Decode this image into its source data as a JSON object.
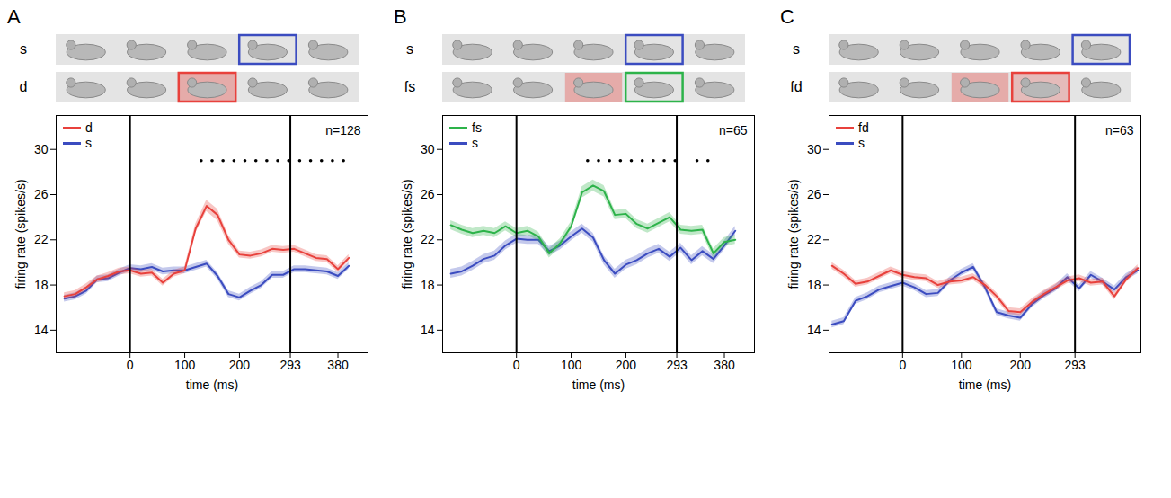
{
  "chart_data": [
    {
      "panel": "A",
      "type": "line",
      "rows": [
        "s",
        "d"
      ],
      "x": [
        -120,
        -100,
        -80,
        -60,
        -40,
        -20,
        0,
        20,
        40,
        60,
        80,
        100,
        120,
        140,
        160,
        180,
        200,
        220,
        240,
        260,
        280,
        300,
        320,
        340,
        360,
        380,
        400
      ],
      "series": [
        {
          "name": "d",
          "color": "#e8413c",
          "values": [
            17.0,
            17.2,
            17.8,
            18.5,
            18.8,
            19.2,
            19.3,
            19.0,
            19.1,
            18.2,
            19.0,
            19.3,
            23.0,
            25.0,
            24.2,
            22.0,
            20.7,
            20.6,
            20.8,
            21.2,
            21.1,
            21.2,
            20.8,
            20.4,
            20.3,
            19.4,
            20.4
          ],
          "error": [
            0.3,
            0.3,
            0.3,
            0.3,
            0.3,
            0.3,
            0.3,
            0.3,
            0.3,
            0.3,
            0.3,
            0.3,
            0.4,
            0.5,
            0.5,
            0.4,
            0.3,
            0.3,
            0.3,
            0.3,
            0.3,
            0.3,
            0.3,
            0.3,
            0.3,
            0.3,
            0.3
          ]
        },
        {
          "name": "s",
          "color": "#3b4cc0",
          "values": [
            16.8,
            17.0,
            17.5,
            18.5,
            18.6,
            19.1,
            19.5,
            19.4,
            19.6,
            19.2,
            19.3,
            19.3,
            19.6,
            19.9,
            18.8,
            17.2,
            16.9,
            17.5,
            18.0,
            18.9,
            18.9,
            19.4,
            19.4,
            19.3,
            19.2,
            18.8,
            19.7
          ],
          "error": [
            0.3,
            0.3,
            0.3,
            0.3,
            0.3,
            0.3,
            0.3,
            0.3,
            0.3,
            0.3,
            0.3,
            0.3,
            0.3,
            0.3,
            0.3,
            0.3,
            0.3,
            0.3,
            0.3,
            0.3,
            0.3,
            0.3,
            0.3,
            0.3,
            0.3,
            0.3,
            0.3
          ]
        }
      ],
      "xlim": [
        -135,
        435
      ],
      "xticks": [
        0,
        100,
        200,
        293,
        380
      ],
      "ylim": [
        12,
        33
      ],
      "yticks": [
        14,
        18,
        22,
        26,
        30
      ],
      "xlabel": "time (ms)",
      "ylabel": "firing rate (spikes/s)",
      "annotation": "n=128",
      "events": [
        0,
        293
      ],
      "significance": {
        "x": [
          130,
          150,
          170,
          190,
          210,
          230,
          250,
          270,
          290,
          310,
          330,
          350,
          370,
          390
        ],
        "y": 29
      },
      "legend": "top-left"
    },
    {
      "panel": "B",
      "type": "line",
      "rows": [
        "s",
        "fs"
      ],
      "x": [
        -120,
        -100,
        -80,
        -60,
        -40,
        -20,
        0,
        20,
        40,
        60,
        80,
        100,
        120,
        140,
        160,
        180,
        200,
        220,
        240,
        260,
        280,
        300,
        320,
        340,
        360,
        380,
        400
      ],
      "series": [
        {
          "name": "fs",
          "color": "#2db34a",
          "values": [
            23.3,
            22.9,
            22.6,
            22.8,
            22.6,
            23.2,
            22.6,
            22.8,
            22.3,
            20.8,
            21.7,
            23.2,
            26.2,
            26.8,
            26.3,
            24.2,
            24.3,
            23.4,
            23.0,
            23.5,
            24.0,
            22.9,
            22.8,
            22.9,
            20.8,
            21.8,
            22.0
          ],
          "error": [
            0.4,
            0.4,
            0.4,
            0.4,
            0.4,
            0.4,
            0.4,
            0.4,
            0.4,
            0.4,
            0.4,
            0.4,
            0.5,
            0.5,
            0.5,
            0.4,
            0.4,
            0.4,
            0.4,
            0.4,
            0.4,
            0.4,
            0.4,
            0.4,
            0.4,
            0.4,
            0.4
          ]
        },
        {
          "name": "s",
          "color": "#3b4cc0",
          "values": [
            19.0,
            19.2,
            19.7,
            20.3,
            20.6,
            21.5,
            22.1,
            22.0,
            22.0,
            21.0,
            21.5,
            22.3,
            23.0,
            22.2,
            20.2,
            19.0,
            19.8,
            20.2,
            20.8,
            21.2,
            20.5,
            21.3,
            20.2,
            21.0,
            20.3,
            21.5,
            22.8
          ],
          "error": [
            0.4,
            0.4,
            0.4,
            0.4,
            0.4,
            0.4,
            0.4,
            0.4,
            0.4,
            0.4,
            0.4,
            0.4,
            0.4,
            0.4,
            0.4,
            0.4,
            0.4,
            0.4,
            0.4,
            0.4,
            0.4,
            0.4,
            0.4,
            0.4,
            0.4,
            0.4,
            0.4
          ]
        }
      ],
      "xlim": [
        -135,
        435
      ],
      "xticks": [
        0,
        100,
        200,
        293,
        380
      ],
      "ylim": [
        12,
        33
      ],
      "yticks": [
        14,
        18,
        22,
        26,
        30
      ],
      "xlabel": "time (ms)",
      "ylabel": "firing rate (spikes/s)",
      "annotation": "n=65",
      "events": [
        0,
        293
      ],
      "significance": {
        "x": [
          130,
          150,
          170,
          190,
          210,
          230,
          250,
          270,
          290,
          330,
          350
        ],
        "y": 29
      },
      "legend": "top-left"
    },
    {
      "panel": "C",
      "type": "line",
      "rows": [
        "s",
        "fd"
      ],
      "x": [
        -120,
        -100,
        -80,
        -60,
        -40,
        -20,
        0,
        20,
        40,
        60,
        80,
        100,
        120,
        140,
        160,
        180,
        200,
        220,
        240,
        260,
        280,
        300,
        320,
        340,
        360,
        380,
        400
      ],
      "series": [
        {
          "name": "fd",
          "color": "#e8413c",
          "values": [
            19.7,
            19.0,
            18.1,
            18.3,
            18.8,
            19.3,
            18.9,
            18.7,
            18.6,
            18.0,
            18.3,
            18.4,
            18.7,
            18.0,
            17.0,
            15.7,
            15.6,
            16.5,
            17.2,
            17.8,
            18.4,
            18.6,
            18.2,
            18.3,
            17.0,
            18.5,
            19.5
          ],
          "error": [
            0.3,
            0.3,
            0.3,
            0.3,
            0.3,
            0.3,
            0.3,
            0.3,
            0.3,
            0.3,
            0.3,
            0.3,
            0.3,
            0.3,
            0.3,
            0.3,
            0.3,
            0.3,
            0.3,
            0.3,
            0.3,
            0.3,
            0.3,
            0.3,
            0.3,
            0.3,
            0.3
          ]
        },
        {
          "name": "s",
          "color": "#3b4cc0",
          "values": [
            14.5,
            14.8,
            16.6,
            17.0,
            17.6,
            17.9,
            18.2,
            17.8,
            17.2,
            17.3,
            18.4,
            19.1,
            19.6,
            17.8,
            15.6,
            15.3,
            15.1,
            16.3,
            17.1,
            17.7,
            18.7,
            17.7,
            18.9,
            18.3,
            17.6,
            18.7,
            19.3
          ],
          "error": [
            0.3,
            0.3,
            0.3,
            0.3,
            0.3,
            0.3,
            0.3,
            0.3,
            0.3,
            0.3,
            0.3,
            0.3,
            0.3,
            0.3,
            0.3,
            0.3,
            0.3,
            0.3,
            0.3,
            0.3,
            0.3,
            0.3,
            0.3,
            0.3,
            0.3,
            0.3,
            0.3
          ]
        }
      ],
      "xlim": [
        -125,
        405
      ],
      "xticks": [
        0,
        100,
        200,
        293
      ],
      "ylim": [
        12,
        33
      ],
      "yticks": [
        14,
        18,
        22,
        26,
        30
      ],
      "xlabel": "time (ms)",
      "ylabel": "firing rate (spikes/s)",
      "annotation": "n=63",
      "events": [
        0,
        293
      ],
      "significance": {
        "x": [],
        "y": 29
      },
      "legend": "top-left"
    }
  ]
}
